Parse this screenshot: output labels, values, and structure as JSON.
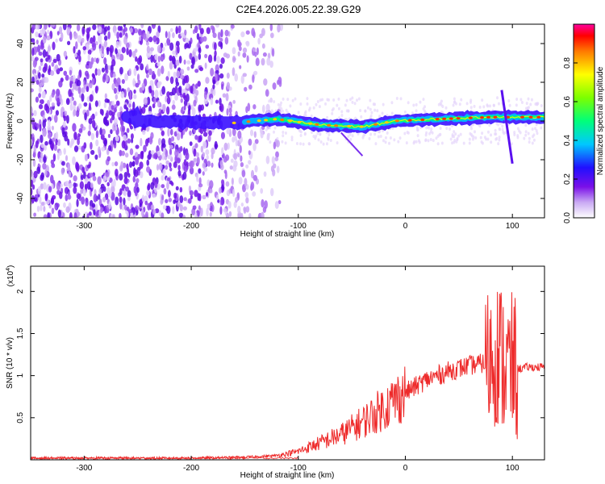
{
  "title": "C2E4.2026.005.22.39.G29",
  "chart_data": [
    {
      "type": "heatmap",
      "xlabel": "Height of straight line (km)",
      "ylabel": "Frequency (Hz)",
      "xlim": [
        -350,
        130
      ],
      "ylim": [
        -50,
        50
      ],
      "xticks": [
        -300,
        -200,
        -100,
        0,
        100
      ],
      "yticks": [
        -40,
        -20,
        0,
        20,
        40
      ],
      "colorbar": {
        "label": "Normalized spectral amplitude",
        "range": [
          0,
          1
        ],
        "ticks": [
          0.0,
          0.2,
          0.4,
          0.6,
          0.8
        ]
      },
      "ridge": [
        {
          "x": -250,
          "y": 0
        },
        {
          "x": -160,
          "y": -1
        },
        {
          "x": -120,
          "y": 1
        },
        {
          "x": -80,
          "y": -2
        },
        {
          "x": -40,
          "y": -3
        },
        {
          "x": -10,
          "y": 0
        },
        {
          "x": 30,
          "y": 1
        },
        {
          "x": 80,
          "y": 2
        },
        {
          "x": 130,
          "y": 2
        }
      ]
    },
    {
      "type": "line",
      "xlabel": "Height of straight line (km)",
      "ylabel": "SNR (10 * v/v)",
      "yscale_label": "(x10",
      "yscale_exp": "4",
      "xlim": [
        -350,
        130
      ],
      "ylim": [
        0,
        2.3
      ],
      "xticks": [
        -300,
        -200,
        -100,
        0,
        100
      ],
      "yticks": [
        0.5,
        1.0,
        1.5,
        2.0
      ],
      "series": [
        {
          "color": "#ee2b2b",
          "x": [
            -350,
            -300,
            -250,
            -200,
            -150,
            -120,
            -100,
            -80,
            -60,
            -40,
            -20,
            0,
            20,
            40,
            60,
            75,
            85,
            95,
            105,
            115,
            130
          ],
          "y": [
            0.02,
            0.02,
            0.02,
            0.02,
            0.03,
            0.05,
            0.1,
            0.2,
            0.3,
            0.45,
            0.62,
            0.8,
            0.95,
            1.05,
            1.12,
            1.15,
            1.3,
            1.1,
            1.08,
            1.1,
            1.1
          ]
        }
      ]
    }
  ]
}
